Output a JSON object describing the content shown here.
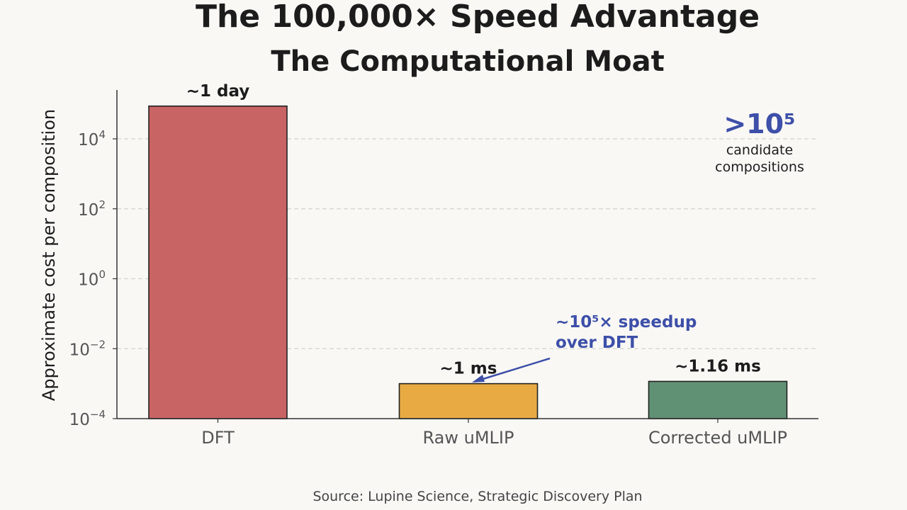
{
  "title": "The 100,000× Speed Advantage",
  "subtitle": "The Computational Moat",
  "source": "Source: Lupine Science, Strategic Discovery Plan",
  "chart_data": {
    "type": "bar",
    "ylabel": "Approximate cost per composition",
    "xlabel": "",
    "yscale": "log",
    "ylim": [
      0.0001,
      250000
    ],
    "yticks": [
      {
        "value": 0.0001,
        "base": "10",
        "exp": "−4"
      },
      {
        "value": 0.01,
        "base": "10",
        "exp": "−2"
      },
      {
        "value": 1,
        "base": "10",
        "exp": "0"
      },
      {
        "value": 100,
        "base": "10",
        "exp": "2"
      },
      {
        "value": 10000,
        "base": "10",
        "exp": "4"
      }
    ],
    "grid": "horizontal dashed",
    "categories": [
      "DFT",
      "Raw uMLIP",
      "Corrected uMLIP"
    ],
    "values": [
      86400,
      0.001,
      0.00116
    ],
    "bar_labels": [
      "~1 day",
      "~1 ms",
      "~1.16 ms"
    ],
    "colors": [
      "#c86464",
      "#e8ab43",
      "#619174"
    ],
    "annotations": {
      "speedup_line1": "~10⁵× speedup",
      "speedup_line2": "over DFT",
      "candidates_main": ">10⁵",
      "candidates_line1": "candidate",
      "candidates_line2": "compositions",
      "accent_color": "#3d4fa8"
    }
  }
}
